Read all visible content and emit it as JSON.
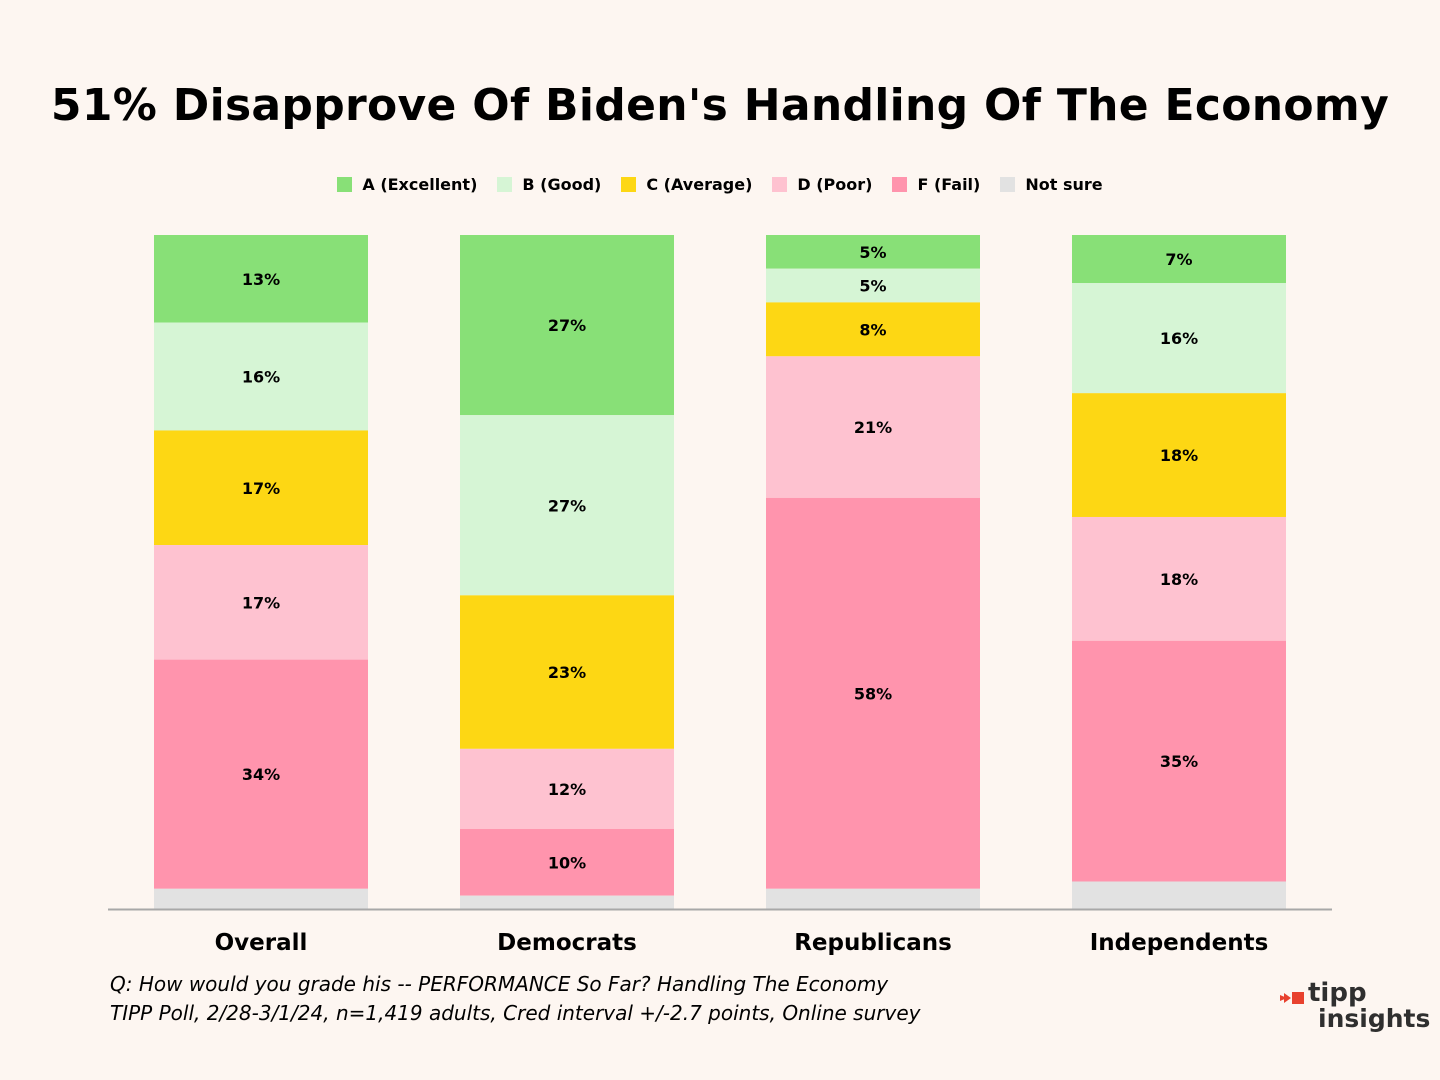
{
  "title": "51% Disapprove Of Biden's Handling Of The Economy",
  "legend": [
    {
      "label": "A (Excellent)",
      "color": "#88e077"
    },
    {
      "label": "B (Good)",
      "color": "#d6f5d5"
    },
    {
      "label": "C (Average)",
      "color": "#fdd714"
    },
    {
      "label": "D (Poor)",
      "color": "#fec2d0"
    },
    {
      "label": "F (Fail)",
      "color": "#ff94ad"
    },
    {
      "label": "Not sure",
      "color": "#e2e2e2"
    }
  ],
  "chart_data": {
    "type": "bar",
    "stacked": true,
    "title": "51% Disapprove Of Biden's Handling Of The Economy",
    "categories": [
      "Overall",
      "Democrats",
      "Republicans",
      "Independents"
    ],
    "series": [
      {
        "name": "A (Excellent)",
        "values": [
          13,
          27,
          5,
          7
        ],
        "labels": [
          "13%",
          "27%",
          "5%",
          "7%"
        ]
      },
      {
        "name": "B (Good)",
        "values": [
          16,
          27,
          5,
          16
        ],
        "labels": [
          "16%",
          "27%",
          "5%",
          "16%"
        ]
      },
      {
        "name": "C (Average)",
        "values": [
          17,
          23,
          8,
          18
        ],
        "labels": [
          "17%",
          "23%",
          "8%",
          "18%"
        ]
      },
      {
        "name": "D (Poor)",
        "values": [
          17,
          12,
          21,
          18
        ],
        "labels": [
          "17%",
          "12%",
          "21%",
          "18%"
        ]
      },
      {
        "name": "F (Fail)",
        "values": [
          34,
          10,
          58,
          35
        ],
        "labels": [
          "34%",
          "10%",
          "58%",
          "35%"
        ]
      },
      {
        "name": "Not sure",
        "values": [
          3,
          2,
          3,
          4
        ],
        "labels": [
          "",
          "",
          "",
          ""
        ]
      }
    ],
    "ylim": [
      0,
      100
    ],
    "legend_position": "top"
  },
  "footnote": {
    "line1": "Q:  How would you grade his -- PERFORMANCE So Far? Handling The Economy",
    "line2": "TIPP Poll, 2/28-3/1/24, n=1,419 adults, Cred interval +/-2.7 points, Online survey"
  },
  "logo": {
    "line1": "tipp",
    "line2": "insights"
  }
}
